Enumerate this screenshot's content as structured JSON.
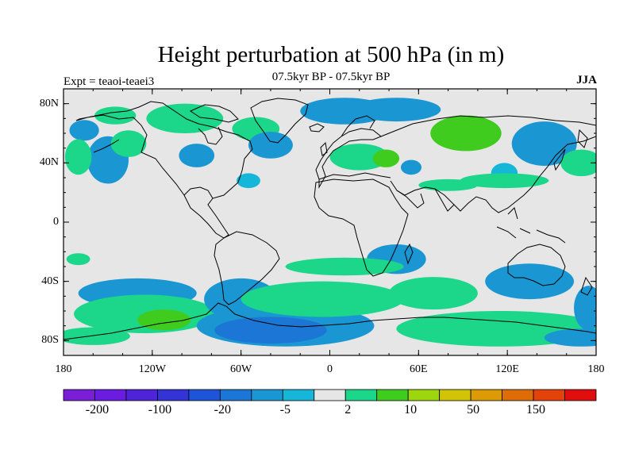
{
  "title": "Height perturbation at 500 hPa (in m)",
  "subtitle": "07.5kyr BP - 07.5kyr BP",
  "left_label": "Expt = teaoi-teaei3",
  "right_label": "JJA",
  "map": {
    "projection": "cylindrical-equidistant",
    "lon_range": [
      -180,
      180
    ],
    "lat_range": [
      -90,
      90
    ],
    "x_ticks": [
      {
        "value": -180,
        "label": "180"
      },
      {
        "value": -120,
        "label": "120W"
      },
      {
        "value": -60,
        "label": "60W"
      },
      {
        "value": 0,
        "label": "0"
      },
      {
        "value": 60,
        "label": "60E"
      },
      {
        "value": 120,
        "label": "120E"
      },
      {
        "value": 180,
        "label": "180"
      }
    ],
    "y_ticks": [
      {
        "value": 80,
        "label": "80N"
      },
      {
        "value": 40,
        "label": "40N"
      },
      {
        "value": 0,
        "label": "0"
      },
      {
        "value": -40,
        "label": "40S"
      },
      {
        "value": -80,
        "label": "80S"
      }
    ],
    "background_color": "#e6e6e6"
  },
  "colorbar": {
    "colors": [
      "#7b1fd6",
      "#6a1de0",
      "#4f24d8",
      "#3433d6",
      "#1e55d8",
      "#1c76d6",
      "#1a97d3",
      "#16b6d8",
      "#e6e6e6",
      "#1cd68a",
      "#40cc1e",
      "#9ed60e",
      "#d1c407",
      "#dc9a07",
      "#df6d07",
      "#e3430b",
      "#e00e0e"
    ],
    "tick_labels": [
      "-200",
      "-100",
      "-20",
      "-5",
      "2",
      "10",
      "50",
      "150"
    ]
  },
  "chart_data": {
    "type": "heatmap",
    "title": "Height perturbation at 500 hPa (in m)",
    "subtitle": "07.5kyr BP - 07.5kyr BP",
    "xlabel": "",
    "ylabel": "",
    "xlim": [
      -180,
      180
    ],
    "ylim": [
      -90,
      90
    ],
    "levels": [
      -200,
      -100,
      -20,
      -5,
      2,
      10,
      50,
      150
    ],
    "field_blobs": [
      {
        "lon": -150,
        "lat": 42,
        "rx": 14,
        "ry": 16,
        "value": -7
      },
      {
        "lon": -166,
        "lat": 62,
        "rx": 10,
        "ry": 7,
        "value": -6
      },
      {
        "lon": -170,
        "lat": 44,
        "rx": 9,
        "ry": 12,
        "value": 6
      },
      {
        "lon": -136,
        "lat": 53,
        "rx": 12,
        "ry": 9,
        "value": 6
      },
      {
        "lon": -145,
        "lat": 72,
        "rx": 14,
        "ry": 6,
        "value": 5
      },
      {
        "lon": -98,
        "lat": 70,
        "rx": 26,
        "ry": 10,
        "value": 4
      },
      {
        "lon": -90,
        "lat": 45,
        "rx": 12,
        "ry": 8,
        "value": -6
      },
      {
        "lon": -50,
        "lat": 63,
        "rx": 16,
        "ry": 8,
        "value": 5
      },
      {
        "lon": -40,
        "lat": 52,
        "rx": 15,
        "ry": 9,
        "value": -6
      },
      {
        "lon": -55,
        "lat": 28,
        "rx": 8,
        "ry": 5,
        "value": -4
      },
      {
        "lon": 10,
        "lat": 75,
        "rx": 30,
        "ry": 9,
        "value": -8
      },
      {
        "lon": 45,
        "lat": 76,
        "rx": 30,
        "ry": 8,
        "value": -12
      },
      {
        "lon": 20,
        "lat": 44,
        "rx": 20,
        "ry": 9,
        "value": 6
      },
      {
        "lon": 38,
        "lat": 43,
        "rx": 9,
        "ry": 6,
        "value": 14
      },
      {
        "lon": 55,
        "lat": 37,
        "rx": 7,
        "ry": 5,
        "value": -5
      },
      {
        "lon": 92,
        "lat": 60,
        "rx": 24,
        "ry": 12,
        "value": 10
      },
      {
        "lon": 92,
        "lat": 60,
        "rx": 10,
        "ry": 5,
        "value": 40
      },
      {
        "lon": 145,
        "lat": 53,
        "rx": 22,
        "ry": 15,
        "value": -10
      },
      {
        "lon": 170,
        "lat": 40,
        "rx": 14,
        "ry": 9,
        "value": 8
      },
      {
        "lon": 118,
        "lat": 33,
        "rx": 9,
        "ry": 7,
        "value": -4
      },
      {
        "lon": 118,
        "lat": 28,
        "rx": 30,
        "ry": 5,
        "value": 3
      },
      {
        "lon": 80,
        "lat": 25,
        "rx": 20,
        "ry": 4,
        "value": 3
      },
      {
        "lon": -170,
        "lat": -25,
        "rx": 8,
        "ry": 4,
        "value": 3
      },
      {
        "lon": 45,
        "lat": -25,
        "rx": 20,
        "ry": 10,
        "value": -9
      },
      {
        "lon": 10,
        "lat": -30,
        "rx": 40,
        "ry": 6,
        "value": 4
      },
      {
        "lon": -130,
        "lat": -48,
        "rx": 40,
        "ry": 10,
        "value": -7
      },
      {
        "lon": -125,
        "lat": -62,
        "rx": 48,
        "ry": 13,
        "value": 8
      },
      {
        "lon": -112,
        "lat": -66,
        "rx": 18,
        "ry": 7,
        "value": 30
      },
      {
        "lon": -60,
        "lat": -52,
        "rx": 25,
        "ry": 14,
        "value": -5
      },
      {
        "lon": -30,
        "lat": -70,
        "rx": 60,
        "ry": 14,
        "value": -10
      },
      {
        "lon": -40,
        "lat": -73,
        "rx": 38,
        "ry": 9,
        "value": -30
      },
      {
        "lon": -5,
        "lat": -52,
        "rx": 55,
        "ry": 12,
        "value": 6
      },
      {
        "lon": 70,
        "lat": -48,
        "rx": 30,
        "ry": 11,
        "value": 5
      },
      {
        "lon": 135,
        "lat": -40,
        "rx": 30,
        "ry": 12,
        "value": -8
      },
      {
        "lon": 115,
        "lat": -72,
        "rx": 70,
        "ry": 12,
        "value": 7
      },
      {
        "lon": -160,
        "lat": -77,
        "rx": 25,
        "ry": 6,
        "value": 5
      },
      {
        "lon": 175,
        "lat": -58,
        "rx": 10,
        "ry": 15,
        "value": -5
      },
      {
        "lon": 170,
        "lat": -78,
        "rx": 25,
        "ry": 6,
        "value": -6
      }
    ]
  }
}
